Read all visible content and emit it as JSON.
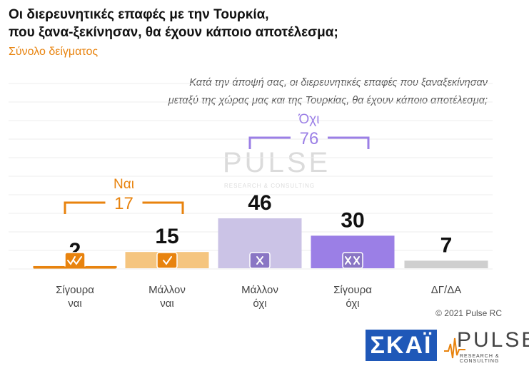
{
  "header": {
    "title_line1": "Οι διερευνητικές επαφές με την Τουρκία,",
    "title_line2": "που ξανα-ξεκίνησαν, θα έχουν κάποιο αποτέλεσμα;",
    "subtitle": "Σύνολο δείγματος",
    "question_line1": "Κατά την άποψή σας, οι διερευνητικές επαφές που ξαναξεκίνησαν",
    "question_line2": "μεταξύ της χώρας μας και της Τουρκίας, θα έχουν κάποιο αποτέλεσμα;"
  },
  "chart_data": {
    "type": "bar",
    "categories": [
      [
        "Σίγουρα",
        "ναι"
      ],
      [
        "Μάλλον",
        "ναι"
      ],
      [
        "Μάλλον",
        "όχι"
      ],
      [
        "Σίγουρα",
        "όχι"
      ],
      [
        "ΔΓ/ΔΑ"
      ]
    ],
    "values": [
      2,
      15,
      46,
      30,
      7
    ],
    "colors": [
      "#e8830e",
      "#f5c57f",
      "#cbc3e6",
      "#9b7fe6",
      "#cfcfcf"
    ],
    "icons": [
      "double-check-icon",
      "check-icon",
      "cross-icon",
      "double-cross-icon",
      ""
    ],
    "groups": [
      {
        "label": "Ναι",
        "value": "17",
        "from": 0,
        "to": 1,
        "color": "#e8830e"
      },
      {
        "label": "Όχι",
        "value": "76",
        "from": 2,
        "to": 3,
        "color": "#9b7fe6"
      }
    ],
    "ylim": [
      0,
      50
    ]
  },
  "footer": {
    "copyright": "© 2021 Pulse RC",
    "logo_skai": "ΣΚΑΪ",
    "logo_pulse": "PULSE",
    "logo_pulse_tag": "RESEARCH & CONSULTING"
  }
}
